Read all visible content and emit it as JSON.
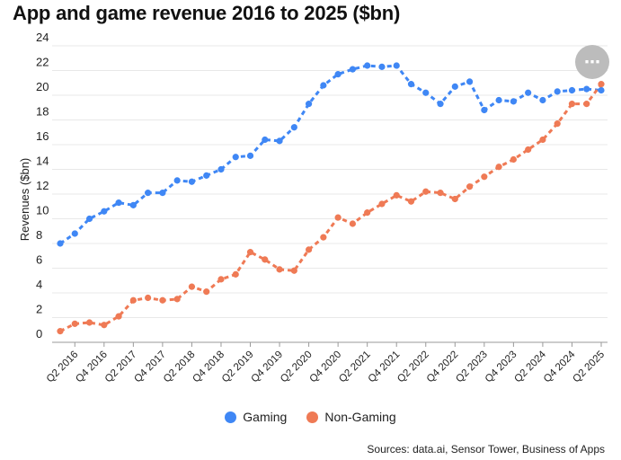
{
  "title": "App and game revenue 2016 to 2025 ($bn)",
  "source": "Sources: data.ai, Sensor Tower, Business of Apps",
  "more_button_icon": "ellipsis-icon",
  "chart_data": {
    "type": "line",
    "title": "App and game revenue 2016 to 2025 ($bn)",
    "ylabel": "Revenues ($bn)",
    "xlabel": "",
    "ylim": [
      0,
      24
    ],
    "yticks": [
      0,
      2,
      4,
      6,
      8,
      10,
      12,
      14,
      16,
      18,
      20,
      22,
      24
    ],
    "grid": "horizontal",
    "legend_position": "bottom",
    "categories": [
      "Q1 2016",
      "Q2 2016",
      "Q3 2016",
      "Q4 2016",
      "Q1 2017",
      "Q2 2017",
      "Q3 2017",
      "Q4 2017",
      "Q1 2018",
      "Q2 2018",
      "Q3 2018",
      "Q4 2018",
      "Q1 2019",
      "Q2 2019",
      "Q3 2019",
      "Q4 2019",
      "Q1 2020",
      "Q2 2020",
      "Q3 2020",
      "Q4 2020",
      "Q1 2021",
      "Q2 2021",
      "Q3 2021",
      "Q4 2021",
      "Q1 2022",
      "Q2 2022",
      "Q3 2022",
      "Q4 2022",
      "Q1 2023",
      "Q2 2023",
      "Q3 2023",
      "Q4 2023",
      "Q1 2024",
      "Q2 2024",
      "Q3 2024",
      "Q4 2024",
      "Q1 2025",
      "Q2 2025"
    ],
    "tick_labels": [
      "Q2 2016",
      "Q4 2016",
      "Q2 2017",
      "Q4 2017",
      "Q2 2018",
      "Q4 2018",
      "Q2 2019",
      "Q4 2019",
      "Q2 2020",
      "Q4 2020",
      "Q2 2021",
      "Q4 2021",
      "Q2 2022",
      "Q4 2022",
      "Q2 2023",
      "Q4 2023",
      "Q2 2024",
      "Q4 2024",
      "Q2 2025"
    ],
    "series": [
      {
        "name": "Gaming",
        "color": "#3f87f5",
        "values": [
          8.0,
          8.8,
          10.0,
          10.6,
          11.3,
          11.1,
          12.1,
          12.1,
          13.1,
          13.0,
          13.5,
          14.0,
          15.0,
          15.1,
          16.4,
          16.3,
          17.4,
          19.3,
          20.8,
          21.7,
          22.1,
          22.4,
          22.3,
          22.4,
          20.9,
          20.2,
          19.3,
          20.7,
          21.1,
          18.8,
          19.6,
          19.5,
          20.2,
          19.6,
          20.3,
          20.4,
          20.5,
          20.4
        ]
      },
      {
        "name": "Non-Gaming",
        "color": "#ef7a55",
        "values": [
          0.9,
          1.5,
          1.6,
          1.4,
          2.1,
          3.4,
          3.6,
          3.4,
          3.5,
          4.5,
          4.1,
          5.1,
          5.5,
          7.3,
          6.7,
          5.9,
          5.8,
          7.5,
          8.5,
          10.1,
          9.6,
          10.5,
          11.2,
          11.9,
          11.4,
          12.2,
          12.1,
          11.6,
          12.6,
          13.4,
          14.2,
          14.8,
          15.6,
          16.4,
          17.7,
          19.3,
          19.3,
          20.9
        ]
      }
    ]
  }
}
